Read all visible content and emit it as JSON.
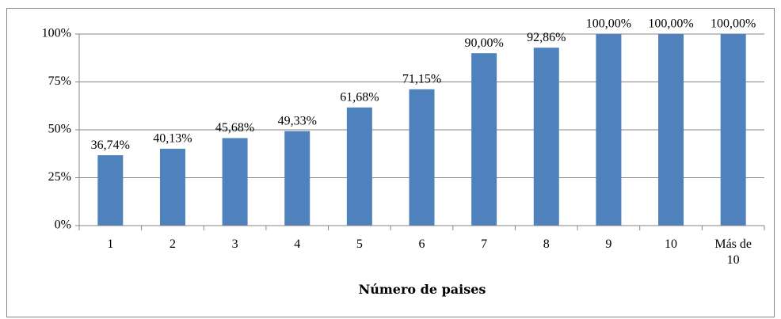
{
  "chart_data": {
    "type": "bar",
    "categories": [
      "1",
      "2",
      "3",
      "4",
      "5",
      "6",
      "7",
      "8",
      "9",
      "10",
      "Más de 10"
    ],
    "values": [
      36.74,
      40.13,
      45.68,
      49.33,
      61.68,
      71.15,
      90.0,
      92.86,
      100.0,
      100.0,
      100.0
    ],
    "value_labels": [
      "36,74%",
      "40,13%",
      "45,68%",
      "49,33%",
      "61,68%",
      "71,15%",
      "90,00%",
      "92,86%",
      "100,00%",
      "100,00%",
      "100,00%"
    ],
    "color": "#4f81bd",
    "x_label": "Número de paises",
    "ylim": [
      0,
      100
    ],
    "yticks": [
      {
        "value": 0,
        "label": "0%"
      },
      {
        "value": 25,
        "label": "25%"
      },
      {
        "value": 50,
        "label": "50%"
      },
      {
        "value": 75,
        "label": "75%"
      },
      {
        "value": 100,
        "label": "100%"
      }
    ],
    "grid": true
  }
}
